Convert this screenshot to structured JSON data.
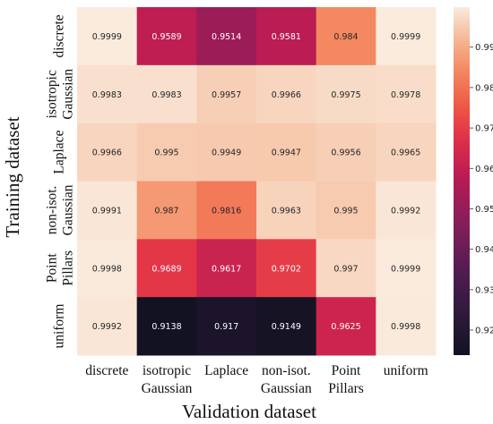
{
  "chart_data": {
    "type": "heatmap",
    "xlabel": "Validation dataset",
    "ylabel": "Training dataset",
    "x_categories": [
      [
        "discrete"
      ],
      [
        "isotropic",
        "Gaussian"
      ],
      [
        "Laplace"
      ],
      [
        "non-isot.",
        "Gaussian"
      ],
      [
        "Point",
        "Pillars"
      ],
      [
        "uniform"
      ]
    ],
    "y_categories": [
      [
        "discrete"
      ],
      [
        "isotropic",
        "Gaussian"
      ],
      [
        "Laplace"
      ],
      [
        "non-isot.",
        "Gaussian"
      ],
      [
        "Point",
        "Pillars"
      ],
      [
        "uniform"
      ]
    ],
    "values": [
      [
        0.9999,
        0.9589,
        0.9514,
        0.9581,
        0.984,
        0.9999
      ],
      [
        0.9983,
        0.9983,
        0.9957,
        0.9966,
        0.9975,
        0.9978
      ],
      [
        0.9966,
        0.995,
        0.9949,
        0.9947,
        0.9956,
        0.9965
      ],
      [
        0.9991,
        0.987,
        0.9816,
        0.9963,
        0.995,
        0.9992
      ],
      [
        0.9998,
        0.9689,
        0.9617,
        0.9702,
        0.997,
        0.9999
      ],
      [
        0.9992,
        0.9138,
        0.917,
        0.9149,
        0.9625,
        0.9998
      ]
    ],
    "colorbar": {
      "range": [
        0.9138,
        0.9999
      ],
      "ticks": [
        "0.92",
        "0.93",
        "0.94",
        "0.95",
        "0.96",
        "0.97",
        "0.98",
        "0.99"
      ],
      "colormap": "rocket"
    }
  }
}
